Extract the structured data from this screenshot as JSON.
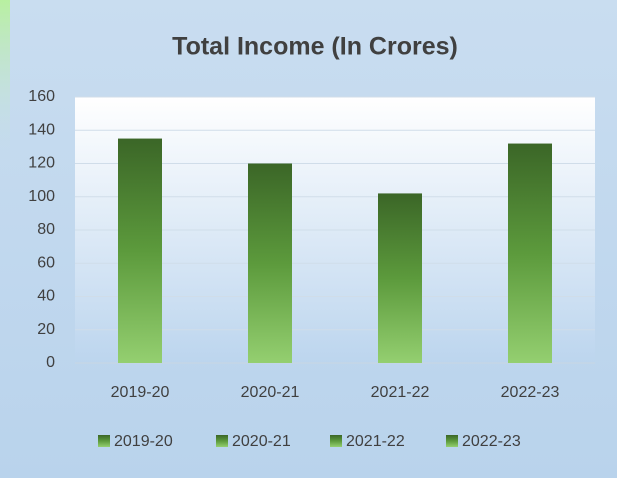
{
  "chart_data": {
    "type": "bar",
    "title": "Total Income (In Crores)",
    "categories": [
      "2019-20",
      "2020-21",
      "2021-22",
      "2022-23"
    ],
    "values": [
      135,
      120,
      102,
      132
    ],
    "color": "#5c9a3c",
    "ylim": [
      0,
      160
    ],
    "yticks": [
      0,
      20,
      40,
      60,
      80,
      100,
      120,
      140,
      160
    ],
    "grid": true,
    "legend": "bottom"
  }
}
